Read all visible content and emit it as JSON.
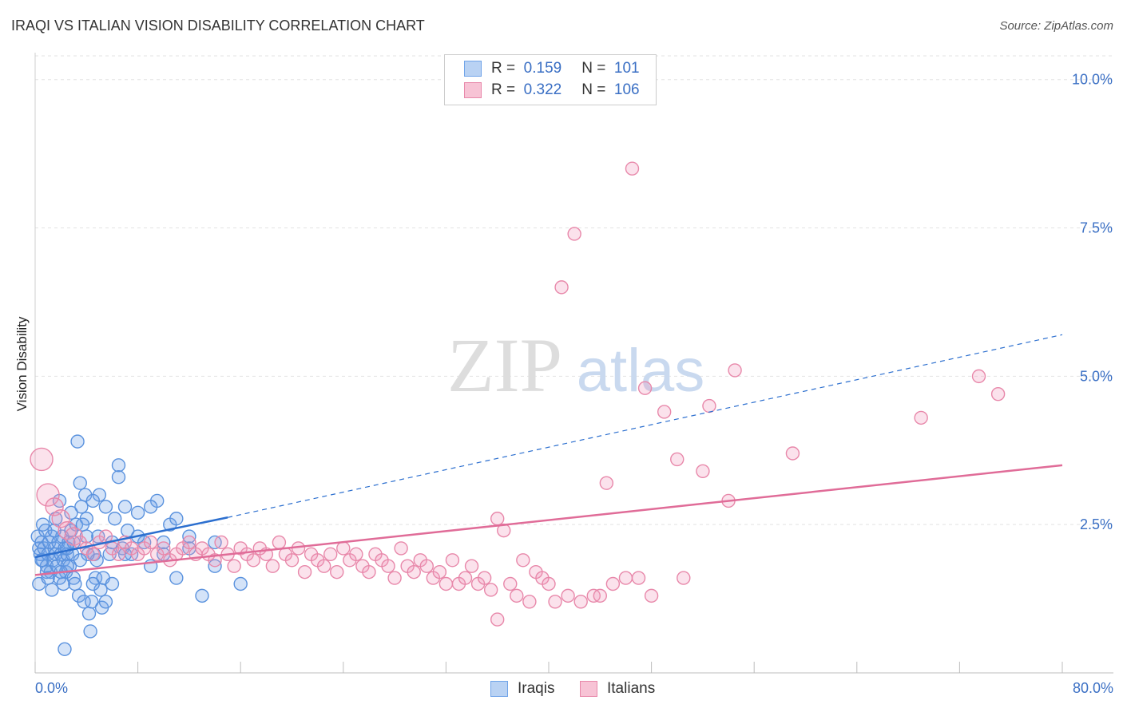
{
  "title": "IRAQI VS ITALIAN VISION DISABILITY CORRELATION CHART",
  "source": "Source: ZipAtlas.com",
  "watermark_zip": "ZIP",
  "watermark_atlas": "atlas",
  "legend": {
    "r_label": "R =",
    "n_label": "N =",
    "rows": [
      {
        "name": "Iraqis",
        "r": "0.159",
        "n": "101",
        "color": "#6fa3e8",
        "fill": "#b9d2f3"
      },
      {
        "name": "Italians",
        "r": "0.322",
        "n": "106",
        "color": "#e888aa",
        "fill": "#f7c3d5"
      }
    ]
  },
  "x_axis": {
    "min_label": "0.0%",
    "max_label": "80.0%"
  },
  "chart_data": {
    "type": "scatter",
    "title": "IRAQI VS ITALIAN VISION DISABILITY CORRELATION CHART",
    "xlabel": "",
    "ylabel": "Vision Disability",
    "xlim": [
      0,
      80
    ],
    "ylim": [
      0,
      10.4
    ],
    "y_ticks": [
      2.5,
      5.0,
      7.5,
      10.0
    ],
    "y_tick_labels": [
      "2.5%",
      "5.0%",
      "7.5%",
      "10.0%"
    ],
    "x_tick_labels": [
      "0.0%",
      "80.0%"
    ],
    "legend_position": "top-center",
    "series": [
      {
        "name": "Iraqis",
        "color": "#4a86d8",
        "points": [
          [
            0.2,
            2.3
          ],
          [
            0.3,
            2.1
          ],
          [
            0.4,
            2.0
          ],
          [
            0.5,
            2.2
          ],
          [
            0.6,
            1.9
          ],
          [
            0.7,
            2.1
          ],
          [
            0.8,
            2.4
          ],
          [
            0.9,
            1.8
          ],
          [
            1.0,
            2.0
          ],
          [
            1.1,
            2.2
          ],
          [
            1.2,
            1.7
          ],
          [
            1.3,
            2.3
          ],
          [
            1.4,
            1.9
          ],
          [
            1.5,
            2.1
          ],
          [
            1.6,
            2.0
          ],
          [
            1.7,
            1.8
          ],
          [
            1.8,
            2.2
          ],
          [
            1.9,
            1.6
          ],
          [
            2.0,
            2.0
          ],
          [
            2.1,
            2.3
          ],
          [
            2.2,
            1.9
          ],
          [
            2.3,
            2.1
          ],
          [
            2.4,
            1.7
          ],
          [
            2.5,
            2.0
          ],
          [
            2.6,
            2.2
          ],
          [
            2.7,
            1.8
          ],
          [
            2.8,
            2.4
          ],
          [
            2.9,
            2.0
          ],
          [
            3.0,
            1.6
          ],
          [
            3.2,
            2.5
          ],
          [
            3.4,
            1.3
          ],
          [
            3.6,
            2.8
          ],
          [
            3.8,
            1.2
          ],
          [
            4.0,
            2.6
          ],
          [
            4.2,
            1.0
          ],
          [
            4.4,
            1.2
          ],
          [
            4.6,
            2.0
          ],
          [
            4.8,
            1.9
          ],
          [
            5.0,
            3.0
          ],
          [
            5.2,
            1.1
          ],
          [
            0.3,
            1.5
          ],
          [
            0.6,
            2.5
          ],
          [
            0.9,
            1.7
          ],
          [
            1.3,
            1.4
          ],
          [
            1.6,
            2.6
          ],
          [
            1.9,
            2.9
          ],
          [
            2.2,
            1.5
          ],
          [
            2.5,
            1.8
          ],
          [
            2.8,
            2.7
          ],
          [
            3.1,
            1.5
          ],
          [
            3.3,
            3.9
          ],
          [
            3.5,
            3.2
          ],
          [
            3.7,
            2.5
          ],
          [
            3.9,
            3.0
          ],
          [
            4.1,
            2.0
          ],
          [
            4.3,
            0.7
          ],
          [
            4.5,
            2.9
          ],
          [
            4.7,
            1.6
          ],
          [
            4.9,
            2.3
          ],
          [
            5.1,
            1.4
          ],
          [
            5.3,
            1.6
          ],
          [
            5.5,
            2.8
          ],
          [
            5.8,
            2.0
          ],
          [
            6.0,
            2.2
          ],
          [
            6.2,
            2.6
          ],
          [
            6.5,
            3.3
          ],
          [
            6.8,
            2.1
          ],
          [
            7.0,
            2.8
          ],
          [
            7.2,
            2.4
          ],
          [
            7.5,
            2.0
          ],
          [
            8.0,
            2.7
          ],
          [
            8.5,
            2.2
          ],
          [
            9.0,
            1.8
          ],
          [
            9.5,
            2.9
          ],
          [
            10.0,
            2.2
          ],
          [
            10.5,
            2.5
          ],
          [
            11.0,
            2.6
          ],
          [
            12.0,
            2.1
          ],
          [
            13.0,
            1.3
          ],
          [
            14.0,
            2.2
          ],
          [
            0.5,
            1.9
          ],
          [
            1.0,
            1.6
          ],
          [
            1.5,
            2.4
          ],
          [
            2.0,
            1.7
          ],
          [
            2.5,
            2.1
          ],
          [
            3.0,
            2.2
          ],
          [
            3.5,
            1.9
          ],
          [
            4.0,
            2.3
          ],
          [
            4.5,
            1.5
          ],
          [
            5.5,
            1.2
          ],
          [
            6.0,
            1.5
          ],
          [
            6.5,
            3.5
          ],
          [
            7.0,
            2.0
          ],
          [
            8.0,
            2.3
          ],
          [
            9.0,
            2.8
          ],
          [
            10.0,
            2.0
          ],
          [
            11.0,
            1.6
          ],
          [
            12.0,
            2.3
          ],
          [
            14.0,
            1.8
          ],
          [
            16.0,
            1.5
          ],
          [
            2.3,
            0.4
          ]
        ]
      },
      {
        "name": "Italians",
        "color": "#e888aa",
        "points": [
          [
            0.5,
            3.6
          ],
          [
            1.0,
            3.0
          ],
          [
            1.5,
            2.8
          ],
          [
            2.0,
            2.6
          ],
          [
            2.5,
            2.4
          ],
          [
            3.0,
            2.3
          ],
          [
            3.5,
            2.2
          ],
          [
            4.0,
            2.1
          ],
          [
            4.5,
            2.0
          ],
          [
            5.0,
            2.2
          ],
          [
            5.5,
            2.3
          ],
          [
            6.0,
            2.1
          ],
          [
            6.5,
            2.0
          ],
          [
            7.0,
            2.2
          ],
          [
            7.5,
            2.1
          ],
          [
            8.0,
            2.0
          ],
          [
            8.5,
            2.1
          ],
          [
            9.0,
            2.2
          ],
          [
            9.5,
            2.0
          ],
          [
            10.0,
            2.1
          ],
          [
            10.5,
            1.9
          ],
          [
            11.0,
            2.0
          ],
          [
            11.5,
            2.1
          ],
          [
            12.0,
            2.2
          ],
          [
            12.5,
            2.0
          ],
          [
            13.0,
            2.1
          ],
          [
            13.5,
            2.0
          ],
          [
            14.0,
            1.9
          ],
          [
            14.5,
            2.2
          ],
          [
            15.0,
            2.0
          ],
          [
            15.5,
            1.8
          ],
          [
            16.0,
            2.1
          ],
          [
            16.5,
            2.0
          ],
          [
            17.0,
            1.9
          ],
          [
            17.5,
            2.1
          ],
          [
            18.0,
            2.0
          ],
          [
            18.5,
            1.8
          ],
          [
            19.0,
            2.2
          ],
          [
            19.5,
            2.0
          ],
          [
            20.0,
            1.9
          ],
          [
            20.5,
            2.1
          ],
          [
            21.0,
            1.7
          ],
          [
            21.5,
            2.0
          ],
          [
            22.0,
            1.9
          ],
          [
            22.5,
            1.8
          ],
          [
            23.0,
            2.0
          ],
          [
            23.5,
            1.7
          ],
          [
            24.0,
            2.1
          ],
          [
            24.5,
            1.9
          ],
          [
            25.0,
            2.0
          ],
          [
            25.5,
            1.8
          ],
          [
            26.0,
            1.7
          ],
          [
            26.5,
            2.0
          ],
          [
            27.0,
            1.9
          ],
          [
            27.5,
            1.8
          ],
          [
            28.0,
            1.6
          ],
          [
            28.5,
            2.1
          ],
          [
            29.0,
            1.8
          ],
          [
            29.5,
            1.7
          ],
          [
            30.0,
            1.9
          ],
          [
            30.5,
            1.8
          ],
          [
            31.0,
            1.6
          ],
          [
            31.5,
            1.7
          ],
          [
            32.0,
            1.5
          ],
          [
            32.5,
            1.9
          ],
          [
            33.0,
            1.5
          ],
          [
            33.5,
            1.6
          ],
          [
            34.0,
            1.8
          ],
          [
            34.5,
            1.5
          ],
          [
            35.0,
            1.6
          ],
          [
            35.5,
            1.4
          ],
          [
            36.0,
            2.6
          ],
          [
            36.5,
            2.4
          ],
          [
            37.0,
            1.5
          ],
          [
            37.5,
            1.3
          ],
          [
            38.0,
            1.9
          ],
          [
            38.5,
            1.2
          ],
          [
            39.0,
            1.7
          ],
          [
            39.5,
            1.6
          ],
          [
            40.0,
            1.5
          ],
          [
            40.5,
            1.2
          ],
          [
            41.0,
            6.5
          ],
          [
            41.5,
            1.3
          ],
          [
            42.0,
            7.4
          ],
          [
            42.5,
            1.2
          ],
          [
            43.5,
            1.3
          ],
          [
            44.5,
            3.2
          ],
          [
            45.0,
            1.5
          ],
          [
            46.5,
            8.5
          ],
          [
            46.0,
            1.6
          ],
          [
            47.0,
            1.6
          ],
          [
            47.5,
            4.8
          ],
          [
            49.0,
            4.4
          ],
          [
            50.0,
            3.6
          ],
          [
            50.5,
            1.6
          ],
          [
            52.0,
            3.4
          ],
          [
            52.5,
            4.5
          ],
          [
            54.0,
            2.9
          ],
          [
            54.5,
            5.1
          ],
          [
            59.0,
            3.7
          ],
          [
            69.0,
            4.3
          ],
          [
            73.5,
            5.0
          ],
          [
            75.0,
            4.7
          ],
          [
            48.0,
            1.3
          ],
          [
            44.0,
            1.3
          ],
          [
            36.0,
            0.9
          ]
        ]
      }
    ],
    "trend_lines": [
      {
        "series": "Iraqis",
        "x_start": 0,
        "y_start": 1.95,
        "x_solid_end": 15,
        "y_solid_end": 2.62,
        "x_end": 80,
        "y_end": 5.7,
        "style": "solid-then-dashed",
        "color": "#2c6fcf"
      },
      {
        "series": "Italians",
        "x_start": 0,
        "y_start": 1.65,
        "x_end": 80,
        "y_end": 3.5,
        "style": "solid",
        "color": "#e06c98"
      }
    ]
  }
}
